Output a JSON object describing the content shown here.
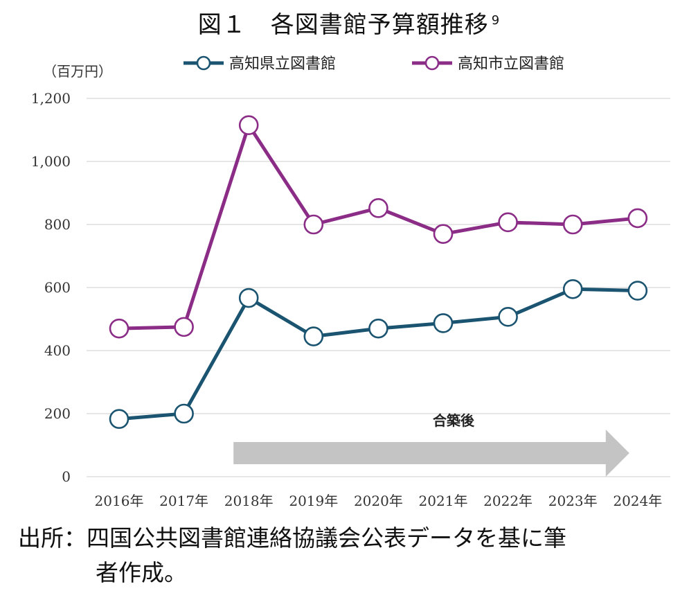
{
  "title": "図１　各図書館予算額推移",
  "title_sup": "9",
  "source_label": "出所：",
  "source_line1": "四国公共図書館連絡協議会公表データを基に筆",
  "source_line2": "者作成。",
  "chart_data": {
    "type": "line",
    "title": "図１　各図書館予算額推移",
    "ylabel": "（百万円）",
    "xlabel": "",
    "ylim": [
      0,
      1200
    ],
    "yticks": [
      0,
      200,
      400,
      600,
      800,
      1000,
      1200
    ],
    "ytick_labels": [
      "0",
      "200",
      "400",
      "600",
      "800",
      "1,000",
      "1,200"
    ],
    "categories": [
      "2016年",
      "2017年",
      "2018年",
      "2019年",
      "2020年",
      "2021年",
      "2022年",
      "2023年",
      "2024年"
    ],
    "series": [
      {
        "name": "高知県立図書館",
        "color": "#1b5470",
        "values": [
          183,
          200,
          567,
          445,
          470,
          487,
          507,
          595,
          590
        ]
      },
      {
        "name": "高知市立図書館",
        "color": "#8b2c86",
        "values": [
          470,
          475,
          1115,
          800,
          852,
          770,
          807,
          800,
          820
        ]
      }
    ],
    "grid": true,
    "legend": "top",
    "annotation": {
      "text": "合築後",
      "from": "2018年",
      "to": "2024年",
      "color": "#c4c4c4"
    }
  }
}
